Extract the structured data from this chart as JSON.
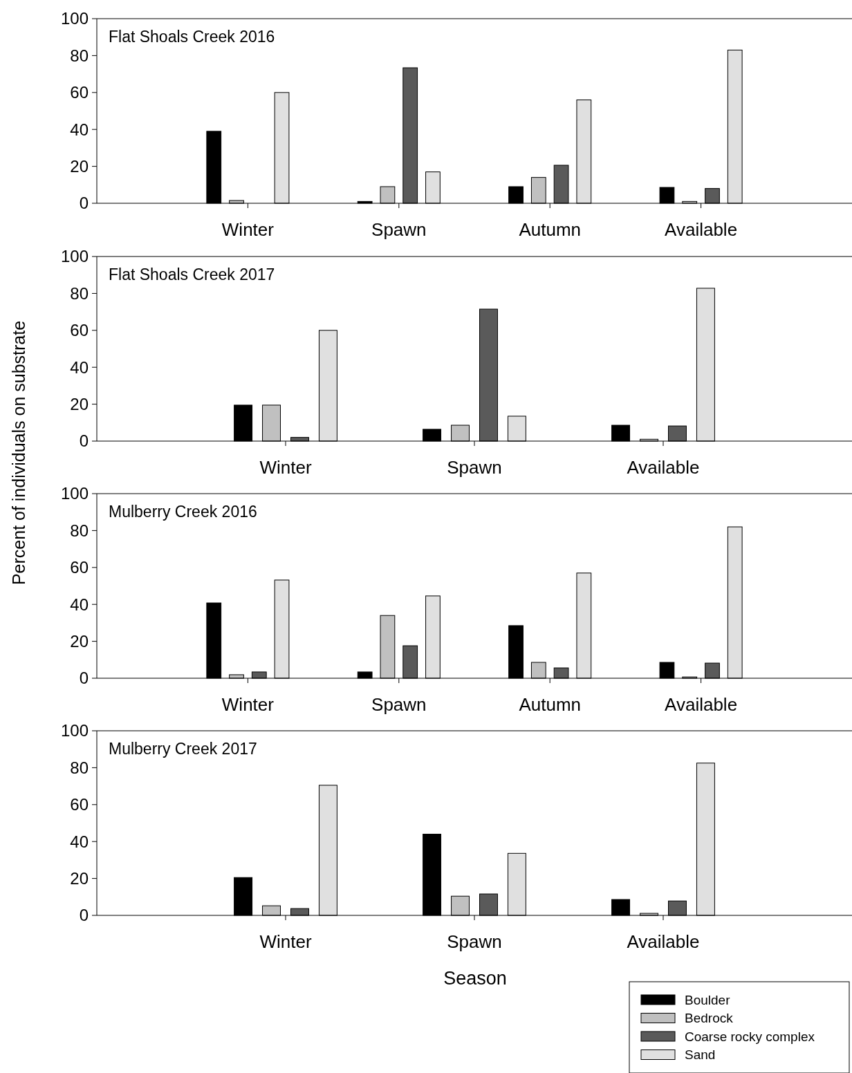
{
  "chart_data": [
    {
      "type": "bar",
      "title": "Flat Shoals Creek 2016",
      "categories": [
        "Winter",
        "Spawn",
        "Autumn",
        "Available"
      ],
      "ylim": [
        0,
        100
      ],
      "yticks": [
        0,
        20,
        40,
        60,
        80,
        100
      ],
      "grid": false,
      "series": [
        {
          "color": "#000000",
          "values": [
            39,
            1,
            9,
            8.6
          ]
        },
        {
          "color": "#c0c0c0",
          "values": [
            1.5,
            9,
            14,
            1
          ]
        },
        {
          "color": "#5a5a5a",
          "values": [
            0,
            73.4,
            20.6,
            8
          ]
        },
        {
          "color": "#e0e0e0",
          "values": [
            60,
            17,
            56,
            83
          ]
        }
      ]
    },
    {
      "type": "bar",
      "title": "Flat Shoals Creek 2017",
      "ylabel": "Percent of individuals on substrate",
      "categories": [
        "Winter",
        "Spawn",
        "Available"
      ],
      "ylim": [
        0,
        100
      ],
      "yticks": [
        0,
        20,
        40,
        60,
        80,
        100
      ],
      "grid": false,
      "series": [
        {
          "color": "#000000",
          "values": [
            19.5,
            6.4,
            8.6
          ]
        },
        {
          "color": "#c0c0c0",
          "values": [
            19.5,
            8.6,
            1
          ]
        },
        {
          "color": "#5a5a5a",
          "values": [
            2,
            71.5,
            8.2
          ]
        },
        {
          "color": "#e0e0e0",
          "values": [
            60,
            13.5,
            82.8
          ]
        }
      ]
    },
    {
      "type": "bar",
      "title": "Mulberry Creek 2016",
      "categories": [
        "Winter",
        "Spawn",
        "Autumn",
        "Available"
      ],
      "ylim": [
        0,
        100
      ],
      "yticks": [
        0,
        20,
        40,
        60,
        80,
        100
      ],
      "grid": false,
      "series": [
        {
          "color": "#000000",
          "values": [
            40.8,
            3.4,
            28.5,
            8.6
          ]
        },
        {
          "color": "#c0c0c0",
          "values": [
            1.9,
            34,
            8.6,
            0.7
          ]
        },
        {
          "color": "#5a5a5a",
          "values": [
            3.4,
            17.6,
            5.6,
            8.2
          ]
        },
        {
          "color": "#e0e0e0",
          "values": [
            53.2,
            44.6,
            57,
            82
          ]
        }
      ]
    },
    {
      "type": "bar",
      "title": "Mulberry Creek 2017",
      "xlabel": "Season",
      "categories": [
        "Winter",
        "Spawn",
        "Available"
      ],
      "ylim": [
        0,
        100
      ],
      "yticks": [
        0,
        20,
        40,
        60,
        80,
        100
      ],
      "grid": false,
      "legend": "bottom right",
      "series": [
        {
          "name": "Boulder",
          "color": "#000000",
          "values": [
            20.5,
            44,
            8.6
          ]
        },
        {
          "name": "Bedrock",
          "color": "#c0c0c0",
          "values": [
            5.2,
            10.4,
            1.1
          ]
        },
        {
          "name": "Coarse rocky complex",
          "color": "#5a5a5a",
          "values": [
            3.7,
            11.6,
            7.8
          ]
        },
        {
          "name": "Sand",
          "color": "#e0e0e0",
          "values": [
            70.5,
            33.6,
            82.5
          ]
        }
      ]
    }
  ]
}
